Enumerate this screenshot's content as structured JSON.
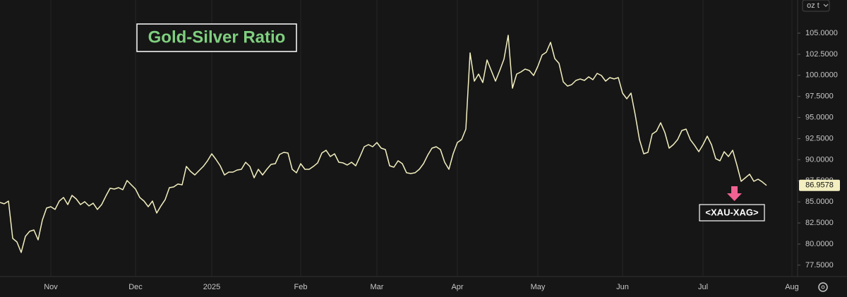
{
  "chart_data": {
    "type": "line",
    "title": "Gold-Silver Ratio",
    "y_unit": "oz t",
    "categories": [
      null,
      null,
      null,
      null,
      null,
      null,
      null,
      null,
      null,
      null,
      null,
      null,
      "Nov",
      null,
      null,
      null,
      null,
      null,
      null,
      null,
      null,
      null,
      null,
      null,
      null,
      null,
      null,
      null,
      null,
      null,
      null,
      null,
      "Dec",
      null,
      null,
      null,
      null,
      null,
      null,
      null,
      null,
      null,
      null,
      null,
      null,
      null,
      null,
      null,
      null,
      null,
      "2025",
      null,
      null,
      null,
      null,
      null,
      null,
      null,
      null,
      null,
      null,
      null,
      null,
      null,
      null,
      null,
      null,
      null,
      null,
      null,
      null,
      "Feb",
      null,
      null,
      null,
      null,
      null,
      null,
      null,
      null,
      null,
      null,
      null,
      null,
      null,
      null,
      null,
      null,
      null,
      "Mar",
      null,
      null,
      null,
      null,
      null,
      null,
      null,
      null,
      null,
      null,
      null,
      null,
      null,
      null,
      null,
      null,
      null,
      null,
      "Apr",
      null,
      null,
      null,
      null,
      null,
      null,
      null,
      null,
      null,
      null,
      null,
      null,
      null,
      null,
      null,
      null,
      null,
      null,
      "May",
      null,
      null,
      null,
      null,
      null,
      null,
      null,
      null,
      null,
      null,
      null,
      null,
      null,
      null,
      null,
      null,
      null,
      null,
      null,
      "Jun",
      null,
      null,
      null,
      null,
      null,
      null,
      null,
      null,
      null,
      null,
      null,
      null,
      null,
      null,
      null,
      null,
      null,
      null,
      "Jul",
      null,
      null,
      null,
      null,
      null,
      null,
      null,
      null,
      null,
      null,
      null,
      null,
      null,
      null,
      null,
      null,
      null,
      null,
      null,
      null,
      "Aug"
    ],
    "series": [
      {
        "name": "<XAU-XAG>",
        "color": "#f3efc0",
        "values": [
          84.93,
          84.77,
          85.1,
          80.67,
          80.25,
          79.0,
          80.92,
          81.51,
          81.67,
          80.5,
          82.84,
          84.27,
          84.43,
          84.1,
          85.1,
          85.52,
          84.68,
          85.77,
          85.35,
          84.68,
          85.02,
          84.52,
          84.85,
          84.1,
          84.68,
          85.69,
          86.61,
          86.52,
          86.69,
          86.44,
          87.53,
          87.02,
          86.52,
          85.52,
          85.1,
          84.43,
          85.1,
          83.68,
          84.52,
          85.27,
          86.69,
          86.77,
          87.11,
          87.02,
          89.2,
          88.61,
          88.19,
          88.7,
          89.2,
          89.87,
          90.7,
          90.03,
          89.28,
          88.19,
          88.53,
          88.53,
          88.78,
          88.86,
          89.7,
          89.2,
          87.86,
          88.86,
          88.19,
          88.86,
          89.45,
          89.53,
          90.62,
          90.87,
          90.79,
          88.86,
          88.45,
          89.53,
          88.86,
          88.86,
          89.2,
          89.62,
          90.79,
          91.12,
          90.37,
          90.7,
          89.7,
          89.62,
          89.37,
          89.7,
          89.28,
          90.37,
          91.54,
          91.79,
          91.54,
          92.04,
          91.37,
          91.2,
          89.28,
          89.11,
          89.87,
          89.53,
          88.45,
          88.36,
          88.45,
          88.86,
          89.53,
          90.54,
          91.37,
          91.54,
          91.2,
          89.7,
          88.86,
          90.7,
          92.04,
          92.38,
          93.63,
          102.66,
          99.31,
          100.15,
          99.15,
          101.82,
          100.57,
          99.31,
          100.57,
          101.91,
          104.75,
          98.48,
          100.15,
          100.4,
          100.74,
          100.57,
          99.98,
          101.07,
          102.41,
          102.74,
          103.91,
          101.99,
          101.41,
          99.23,
          98.73,
          98.9,
          99.4,
          99.57,
          99.4,
          99.82,
          99.48,
          100.23,
          99.98,
          99.31,
          99.73,
          99.57,
          99.73,
          97.89,
          97.22,
          97.89,
          95.3,
          92.38,
          90.7,
          90.87,
          93.04,
          93.38,
          94.38,
          93.21,
          91.37,
          91.79,
          92.38,
          93.46,
          93.63,
          92.38,
          91.71,
          90.95,
          91.79,
          92.79,
          91.79,
          90.12,
          89.87,
          90.95,
          90.37,
          91.12,
          89.37,
          87.44,
          87.86,
          88.28,
          87.44,
          87.69,
          87.36,
          86.9578,
          null,
          null,
          null,
          null,
          null,
          null
        ]
      }
    ],
    "ylim": [
      76.15,
      108.93
    ],
    "yticks": [
      {
        "value": 77.5,
        "label": "77.5000"
      },
      {
        "value": 80,
        "label": "80.0000"
      },
      {
        "value": 82.5,
        "label": "82.5000"
      },
      {
        "value": 85,
        "label": "85.0000"
      },
      {
        "value": 87.5,
        "label": "87.5000"
      },
      {
        "value": 90,
        "label": "90.0000"
      },
      {
        "value": 92.5,
        "label": "92.5000"
      },
      {
        "value": 95,
        "label": "95.0000"
      },
      {
        "value": 97.5,
        "label": "97.5000"
      },
      {
        "value": 100,
        "label": "100.0000"
      },
      {
        "value": 102.5,
        "label": "102.5000"
      },
      {
        "value": 105,
        "label": "105.0000"
      }
    ],
    "xgrid": true,
    "ygrid": false
  }
}
